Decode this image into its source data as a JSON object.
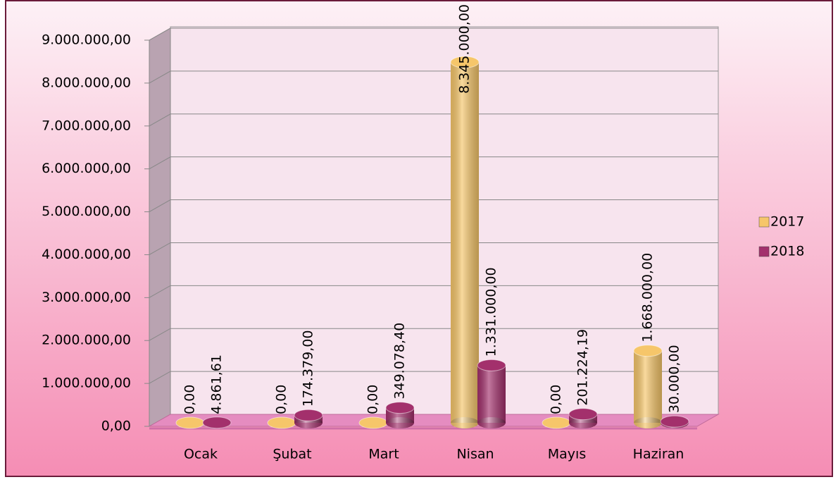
{
  "chart_data": {
    "type": "bar",
    "categories": [
      "Ocak",
      "Şubat",
      "Mart",
      "Nisan",
      "Mayıs",
      "Haziran"
    ],
    "series": [
      {
        "name": "2017",
        "color": "#f6c66a",
        "values": [
          0,
          0,
          0,
          8345000,
          0,
          1668000
        ],
        "value_labels": [
          "0,00",
          "0,00",
          "0,00",
          "8.345.000,00",
          "0,00",
          "1.668.000,00"
        ]
      },
      {
        "name": "2018",
        "color": "#a3306c",
        "values": [
          4861.61,
          174379,
          349078.4,
          1331000,
          201224.19,
          30000
        ],
        "value_labels": [
          "4.861,61",
          "174.379,00",
          "349.078,40",
          "1.331.000,00",
          "201.224,19",
          "30.000,00"
        ]
      }
    ],
    "ylim": [
      0,
      9000000
    ],
    "yticks": [
      {
        "value": 0,
        "label": "0,00"
      },
      {
        "value": 1000000,
        "label": "1.000.000,00"
      },
      {
        "value": 2000000,
        "label": "2.000.000,00"
      },
      {
        "value": 3000000,
        "label": "3.000.000,00"
      },
      {
        "value": 4000000,
        "label": "4.000.000,00"
      },
      {
        "value": 5000000,
        "label": "5.000.000,00"
      },
      {
        "value": 6000000,
        "label": "6.000.000,00"
      },
      {
        "value": 7000000,
        "label": "7.000.000,00"
      },
      {
        "value": 8000000,
        "label": "8.000.000,00"
      },
      {
        "value": 9000000,
        "label": "9.000.000,00"
      }
    ],
    "grid": true,
    "legend": "right"
  }
}
